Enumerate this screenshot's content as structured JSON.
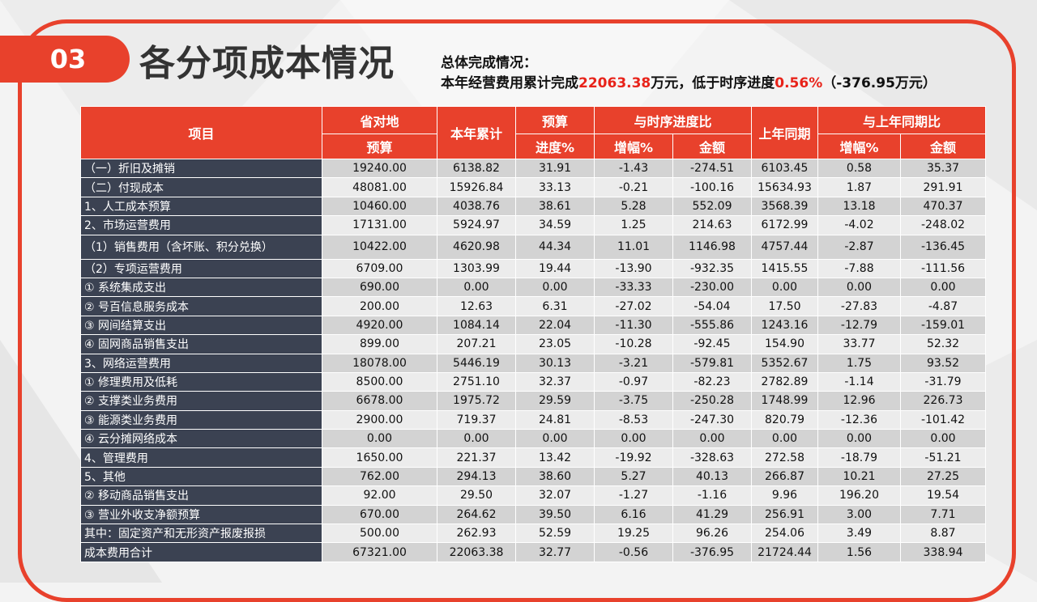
{
  "section_number": "03",
  "title": "各分项成本情况",
  "summary": {
    "line1": "总体完成情况：",
    "line2_prefix": "本年经营费用累计完成",
    "cumulative": "22063.38",
    "line2_mid": "万元，低于时序进度",
    "progress_gap": "0.56%",
    "line2_suffix": "（-376.95万元）"
  },
  "colors": {
    "accent": "#e8412c",
    "row_label_bg": "#3b4252",
    "highlight": "#e8231a"
  },
  "table": {
    "headers": {
      "item": "项目",
      "province_top": "省对地",
      "province_bottom": "预算",
      "ytd": "本年累计",
      "budget_top": "预算",
      "budget_bottom": "进度%",
      "schedule_group": "与时序进度比",
      "schedule_rate": "增幅%",
      "schedule_amount": "金额",
      "last_year": "上年同期",
      "yoy_group": "与上年同期比",
      "yoy_rate": "增幅%",
      "yoy_amount": "金额"
    },
    "rows": [
      {
        "name": "（一）折旧及摊销",
        "cells": [
          "19240.00",
          "6138.82",
          "31.91",
          "-1.43",
          "-274.51",
          "6103.45",
          "0.58",
          "35.37"
        ]
      },
      {
        "name": "（二）付现成本",
        "cells": [
          "48081.00",
          "15926.84",
          "33.13",
          "-0.21",
          "-100.16",
          "15634.93",
          "1.87",
          "291.91"
        ]
      },
      {
        "name": "1、人工成本预算",
        "cells": [
          "10460.00",
          "4038.76",
          "38.61",
          "5.28",
          "552.09",
          "3568.39",
          "13.18",
          "470.37"
        ]
      },
      {
        "name": "2、市场运营费用",
        "cells": [
          "17131.00",
          "5924.97",
          "34.59",
          "1.25",
          "214.63",
          "6172.99",
          "-4.02",
          "-248.02"
        ]
      },
      {
        "name": "（1）销售费用（含坏账、积分兑换）",
        "cells": [
          "10422.00",
          "4620.98",
          "44.34",
          "11.01",
          "1146.98",
          "4757.44",
          "-2.87",
          "-136.45"
        ]
      },
      {
        "name": "（2）专项运营费用",
        "cells": [
          "6709.00",
          "1303.99",
          "19.44",
          "-13.90",
          "-932.35",
          "1415.55",
          "-7.88",
          "-111.56"
        ]
      },
      {
        "name": "① 系统集成支出",
        "cells": [
          "690.00",
          "0.00",
          "0.00",
          "-33.33",
          "-230.00",
          "0.00",
          "0.00",
          "0.00"
        ]
      },
      {
        "name": "② 号百信息服务成本",
        "cells": [
          "200.00",
          "12.63",
          "6.31",
          "-27.02",
          "-54.04",
          "17.50",
          "-27.83",
          "-4.87"
        ]
      },
      {
        "name": "③ 网间结算支出",
        "cells": [
          "4920.00",
          "1084.14",
          "22.04",
          "-11.30",
          "-555.86",
          "1243.16",
          "-12.79",
          "-159.01"
        ]
      },
      {
        "name": "④ 固网商品销售支出",
        "cells": [
          "899.00",
          "207.21",
          "23.05",
          "-10.28",
          "-92.45",
          "154.90",
          "33.77",
          "52.32"
        ]
      },
      {
        "name": "3、网络运营费用",
        "cells": [
          "18078.00",
          "5446.19",
          "30.13",
          "-3.21",
          "-579.81",
          "5352.67",
          "1.75",
          "93.52"
        ]
      },
      {
        "name": "① 修理费用及低耗",
        "cells": [
          "8500.00",
          "2751.10",
          "32.37",
          "-0.97",
          "-82.23",
          "2782.89",
          "-1.14",
          "-31.79"
        ]
      },
      {
        "name": "② 支撑类业务费用",
        "cells": [
          "6678.00",
          "1975.72",
          "29.59",
          "-3.75",
          "-250.28",
          "1748.99",
          "12.96",
          "226.73"
        ]
      },
      {
        "name": "③ 能源类业务费用",
        "cells": [
          "2900.00",
          "719.37",
          "24.81",
          "-8.53",
          "-247.30",
          "820.79",
          "-12.36",
          "-101.42"
        ]
      },
      {
        "name": "④ 云分摊网络成本",
        "cells": [
          "0.00",
          "0.00",
          "0.00",
          "0.00",
          "0.00",
          "0.00",
          "0.00",
          "0.00"
        ]
      },
      {
        "name": "4、管理费用",
        "cells": [
          "1650.00",
          "221.37",
          "13.42",
          "-19.92",
          "-328.63",
          "272.58",
          "-18.79",
          "-51.21"
        ]
      },
      {
        "name": "5、其他",
        "cells": [
          "762.00",
          "294.13",
          "38.60",
          "5.27",
          "40.13",
          "266.87",
          "10.21",
          "27.25"
        ]
      },
      {
        "name": "② 移动商品销售支出",
        "cells": [
          "92.00",
          "29.50",
          "32.07",
          "-1.27",
          "-1.16",
          "9.96",
          "196.20",
          "19.54"
        ]
      },
      {
        "name": "③ 营业外收支净额预算",
        "cells": [
          "670.00",
          "264.62",
          "39.50",
          "6.16",
          "41.29",
          "256.91",
          "3.00",
          "7.71"
        ]
      },
      {
        "name": "其中：固定资产和无形资产报废报损",
        "cells": [
          "500.00",
          "262.93",
          "52.59",
          "19.25",
          "96.26",
          "254.06",
          "3.49",
          "8.87"
        ]
      },
      {
        "name": "成本费用合计",
        "cells": [
          "67321.00",
          "22063.38",
          "32.77",
          "-0.56",
          "-376.95",
          "21724.44",
          "1.56",
          "338.94"
        ]
      }
    ]
  }
}
